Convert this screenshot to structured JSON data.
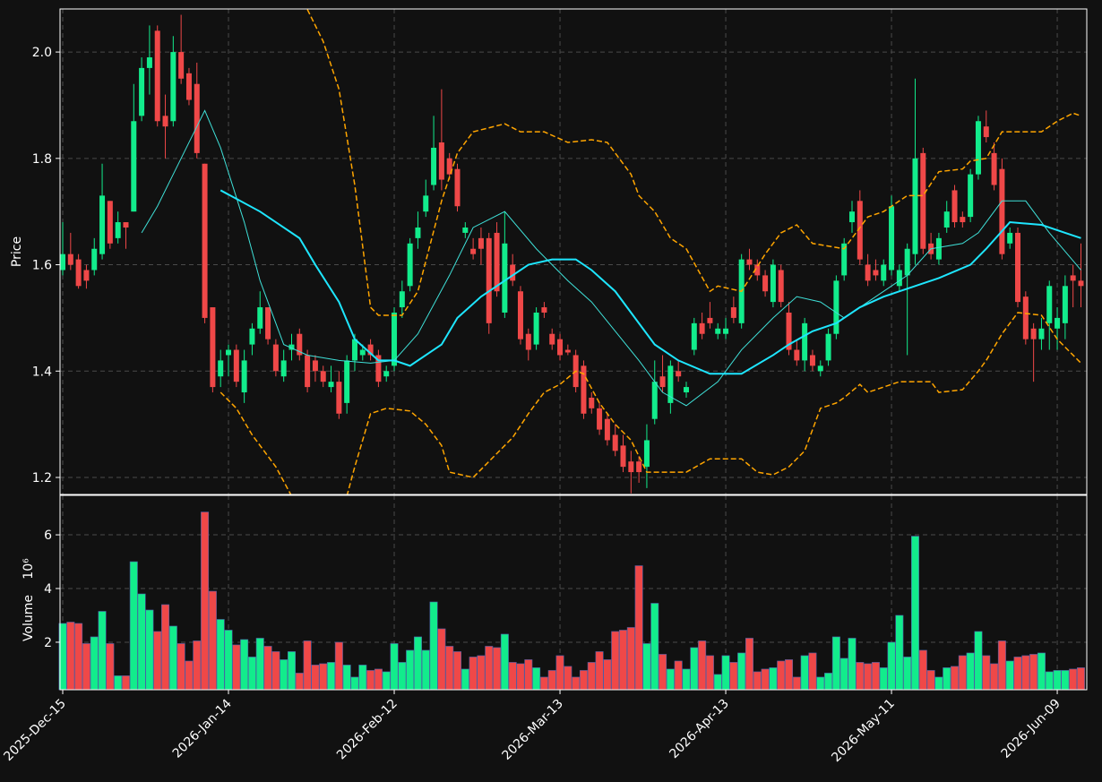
{
  "chart_data": {
    "type": "candlestick",
    "ylabel": "Price",
    "volume_ylabel": "Volume",
    "volume_exponent": "10⁶",
    "up_color": "#12ec8c",
    "down_color": "#ef4848",
    "grid": true,
    "ylim": [
      1.168,
      2.081
    ],
    "yticks": [
      1.2,
      1.4,
      1.6,
      1.8,
      {
        "value": 2,
        "label": "2.0"
      }
    ],
    "volume_ylim": [
      0.23,
      7.47
    ],
    "volume_yticks": [
      2,
      4,
      6
    ],
    "categories": [
      "2025-Dec-15",
      null,
      null,
      null,
      null,
      null,
      null,
      null,
      null,
      null,
      null,
      null,
      null,
      null,
      null,
      null,
      null,
      null,
      null,
      null,
      null,
      "2026-Jan-14",
      null,
      null,
      null,
      null,
      null,
      null,
      null,
      null,
      null,
      null,
      null,
      null,
      null,
      null,
      null,
      null,
      null,
      null,
      null,
      null,
      "2026-Feb-12",
      null,
      null,
      null,
      null,
      null,
      null,
      null,
      null,
      null,
      null,
      null,
      null,
      null,
      null,
      null,
      null,
      null,
      null,
      null,
      null,
      "2026-Mar-13",
      null,
      null,
      null,
      null,
      null,
      null,
      null,
      null,
      null,
      null,
      null,
      null,
      null,
      null,
      null,
      null,
      null,
      null,
      null,
      null,
      "2026-Apr-13",
      null,
      null,
      null,
      null,
      null,
      null,
      null,
      null,
      null,
      null,
      null,
      null,
      null,
      null,
      null,
      null,
      null,
      null,
      null,
      null,
      "2026-May-11",
      null,
      null,
      null,
      null,
      null,
      null,
      null,
      null,
      null,
      null,
      null,
      null,
      null,
      null,
      null,
      null,
      null,
      null,
      null,
      null,
      "2026-Jun-09",
      null,
      null,
      null
    ],
    "open": [
      1.59,
      1.62,
      1.61,
      1.59,
      1.59,
      1.62,
      1.72,
      1.65,
      1.68,
      1.7,
      1.88,
      1.97,
      2.04,
      1.88,
      1.87,
      2.0,
      1.96,
      1.94,
      1.79,
      1.52,
      1.39,
      1.43,
      1.44,
      1.36,
      1.45,
      1.48,
      1.52,
      1.45,
      1.39,
      1.44,
      1.47,
      1.43,
      1.42,
      1.4,
      1.37,
      1.38,
      1.34,
      1.42,
      1.43,
      1.45,
      1.43,
      1.39,
      1.41,
      1.52,
      1.56,
      1.65,
      1.7,
      1.75,
      1.83,
      1.8,
      1.78,
      1.66,
      1.63,
      1.65,
      1.65,
      1.66,
      1.51,
      1.6,
      1.55,
      1.47,
      1.45,
      1.52,
      1.47,
      1.46,
      1.44,
      1.43,
      1.41,
      1.35,
      1.33,
      1.31,
      1.28,
      1.26,
      1.23,
      1.23,
      1.22,
      1.31,
      1.39,
      1.34,
      1.4,
      1.36,
      1.44,
      1.49,
      1.5,
      1.47,
      1.47,
      1.52,
      1.49,
      1.61,
      1.6,
      1.58,
      1.53,
      1.59,
      1.51,
      1.44,
      1.42,
      1.43,
      1.4,
      1.42,
      1.47,
      1.58,
      1.68,
      1.72,
      1.6,
      1.59,
      1.57,
      1.59,
      1.56,
      1.58,
      1.62,
      1.81,
      1.64,
      1.61,
      1.67,
      1.74,
      1.69,
      1.69,
      1.77,
      1.86,
      1.81,
      1.78,
      1.64,
      1.66,
      1.54,
      1.48,
      1.46,
      1.49,
      1.48,
      1.49,
      1.58,
      1.57
    ],
    "high": [
      1.68,
      1.66,
      1.62,
      1.6,
      1.65,
      1.79,
      1.72,
      1.7,
      1.68,
      1.94,
      1.99,
      2.05,
      2.05,
      1.92,
      2.03,
      2.07,
      1.97,
      1.98,
      1.79,
      1.52,
      1.44,
      1.45,
      1.45,
      1.44,
      1.49,
      1.55,
      1.52,
      1.46,
      1.44,
      1.47,
      1.48,
      1.44,
      1.43,
      1.41,
      1.41,
      1.4,
      1.43,
      1.47,
      1.45,
      1.46,
      1.44,
      1.41,
      1.52,
      1.57,
      1.65,
      1.7,
      1.76,
      1.88,
      1.93,
      1.81,
      1.79,
      1.68,
      1.65,
      1.67,
      1.66,
      1.68,
      1.7,
      1.62,
      1.56,
      1.48,
      1.52,
      1.53,
      1.48,
      1.47,
      1.45,
      1.44,
      1.42,
      1.36,
      1.34,
      1.32,
      1.3,
      1.28,
      1.25,
      1.24,
      1.3,
      1.42,
      1.43,
      1.42,
      1.42,
      1.38,
      1.5,
      1.51,
      1.53,
      1.49,
      1.5,
      1.54,
      1.62,
      1.63,
      1.61,
      1.59,
      1.61,
      1.6,
      1.53,
      1.46,
      1.5,
      1.44,
      1.42,
      1.48,
      1.58,
      1.65,
      1.72,
      1.74,
      1.62,
      1.61,
      1.61,
      1.73,
      1.6,
      1.64,
      1.95,
      1.82,
      1.66,
      1.66,
      1.72,
      1.75,
      1.7,
      1.78,
      1.88,
      1.89,
      1.83,
      1.8,
      1.67,
      1.67,
      1.55,
      1.49,
      1.5,
      1.57,
      1.52,
      1.58,
      1.6,
      1.64
    ],
    "low": [
      1.58,
      1.59,
      1.555,
      1.555,
      1.58,
      1.61,
      1.63,
      1.64,
      1.63,
      1.7,
      1.87,
      1.92,
      1.86,
      1.8,
      1.86,
      1.94,
      1.9,
      1.8,
      1.49,
      1.36,
      1.37,
      1.39,
      1.37,
      1.34,
      1.43,
      1.47,
      1.45,
      1.39,
      1.38,
      1.42,
      1.42,
      1.36,
      1.38,
      1.37,
      1.36,
      1.31,
      1.32,
      1.4,
      1.42,
      1.42,
      1.37,
      1.38,
      1.4,
      1.5,
      1.55,
      1.63,
      1.69,
      1.74,
      1.74,
      1.76,
      1.7,
      1.65,
      1.61,
      1.6,
      1.47,
      1.54,
      1.5,
      1.56,
      1.45,
      1.42,
      1.44,
      1.5,
      1.44,
      1.42,
      1.43,
      1.36,
      1.31,
      1.32,
      1.28,
      1.26,
      1.24,
      1.21,
      1.17,
      1.19,
      1.18,
      1.3,
      1.36,
      1.32,
      1.38,
      1.35,
      1.43,
      1.46,
      1.48,
      1.46,
      1.46,
      1.49,
      1.48,
      1.59,
      1.57,
      1.54,
      1.52,
      1.52,
      1.43,
      1.41,
      1.4,
      1.4,
      1.39,
      1.41,
      1.46,
      1.57,
      1.66,
      1.6,
      1.56,
      1.57,
      1.56,
      1.58,
      1.55,
      1.43,
      1.6,
      1.62,
      1.61,
      1.6,
      1.66,
      1.67,
      1.67,
      1.68,
      1.76,
      1.83,
      1.74,
      1.61,
      1.63,
      1.52,
      1.45,
      1.38,
      1.44,
      1.44,
      1.44,
      1.46,
      1.52,
      1.52
    ],
    "close": [
      1.62,
      1.6,
      1.56,
      1.57,
      1.63,
      1.73,
      1.64,
      1.68,
      1.67,
      1.87,
      1.97,
      1.99,
      1.87,
      1.86,
      2.0,
      1.95,
      1.91,
      1.81,
      1.5,
      1.37,
      1.42,
      1.44,
      1.38,
      1.42,
      1.48,
      1.52,
      1.46,
      1.4,
      1.42,
      1.45,
      1.43,
      1.37,
      1.4,
      1.38,
      1.38,
      1.32,
      1.42,
      1.46,
      1.44,
      1.43,
      1.38,
      1.4,
      1.51,
      1.55,
      1.64,
      1.67,
      1.73,
      1.82,
      1.76,
      1.77,
      1.71,
      1.67,
      1.62,
      1.63,
      1.49,
      1.55,
      1.64,
      1.57,
      1.46,
      1.44,
      1.51,
      1.51,
      1.45,
      1.43,
      1.435,
      1.37,
      1.32,
      1.33,
      1.29,
      1.27,
      1.25,
      1.22,
      1.21,
      1.21,
      1.27,
      1.38,
      1.37,
      1.41,
      1.39,
      1.37,
      1.49,
      1.47,
      1.49,
      1.48,
      1.48,
      1.5,
      1.61,
      1.6,
      1.58,
      1.55,
      1.6,
      1.53,
      1.44,
      1.42,
      1.49,
      1.41,
      1.41,
      1.47,
      1.57,
      1.64,
      1.7,
      1.61,
      1.57,
      1.58,
      1.6,
      1.71,
      1.59,
      1.63,
      1.8,
      1.63,
      1.62,
      1.65,
      1.7,
      1.68,
      1.68,
      1.77,
      1.87,
      1.84,
      1.75,
      1.62,
      1.66,
      1.53,
      1.46,
      1.46,
      1.48,
      1.56,
      1.5,
      1.56,
      1.57,
      1.56
    ],
    "volume": [
      2.7,
      2.75,
      2.7,
      1.95,
      2.2,
      3.15,
      1.95,
      0.75,
      0.75,
      5.0,
      3.8,
      3.2,
      2.4,
      3.4,
      2.6,
      1.95,
      1.3,
      2.05,
      6.85,
      3.9,
      2.85,
      2.45,
      1.9,
      2.1,
      1.45,
      2.15,
      1.85,
      1.65,
      1.35,
      1.65,
      0.85,
      2.05,
      1.15,
      1.2,
      1.25,
      2.0,
      1.15,
      0.7,
      1.15,
      0.95,
      1.0,
      0.9,
      1.95,
      1.25,
      1.7,
      2.2,
      1.7,
      3.5,
      2.5,
      1.85,
      1.65,
      1.0,
      1.45,
      1.5,
      1.85,
      1.8,
      2.3,
      1.25,
      1.2,
      1.35,
      1.05,
      0.7,
      0.95,
      1.5,
      1.1,
      0.7,
      0.95,
      1.25,
      1.65,
      1.35,
      2.4,
      2.45,
      2.55,
      4.85,
      1.95,
      3.45,
      1.55,
      1.0,
      1.3,
      1.0,
      1.8,
      2.05,
      1.5,
      0.8,
      1.5,
      1.25,
      1.6,
      2.15,
      0.9,
      1.0,
      1.05,
      1.3,
      1.35,
      0.7,
      1.5,
      1.6,
      0.7,
      0.85,
      2.2,
      1.4,
      2.15,
      1.25,
      1.2,
      1.25,
      1.05,
      2.0,
      3.0,
      1.45,
      5.95,
      1.7,
      0.95,
      0.7,
      1.05,
      1.1,
      1.5,
      1.6,
      2.4,
      1.5,
      1.2,
      2.05,
      1.3,
      1.45,
      1.5,
      1.55,
      1.6,
      0.9,
      0.95,
      0.95,
      1.0,
      1.05
    ],
    "lines": [
      {
        "color": "#3fe0d8",
        "width": 1,
        "dash": false,
        "x": [
          10,
          12,
          15,
          17,
          18,
          20,
          23,
          25,
          28,
          31,
          35,
          39,
          42,
          45,
          49,
          52,
          56,
          60,
          64,
          67,
          73,
          76,
          79,
          83,
          86,
          90,
          93,
          96,
          99,
          103,
          107,
          110,
          114,
          116,
          119,
          122,
          125,
          129
        ],
        "values": [
          1.66,
          1.71,
          1.8,
          1.86,
          1.89,
          1.82,
          1.68,
          1.57,
          1.45,
          1.43,
          1.42,
          1.415,
          1.42,
          1.47,
          1.58,
          1.67,
          1.7,
          1.63,
          1.57,
          1.53,
          1.42,
          1.36,
          1.335,
          1.38,
          1.44,
          1.5,
          1.54,
          1.53,
          1.5,
          1.54,
          1.58,
          1.63,
          1.64,
          1.66,
          1.72,
          1.72,
          1.66,
          1.59
        ]
      },
      {
        "color": "#1ee6ff",
        "width": 2,
        "dash": false,
        "x": [
          20,
          25,
          27,
          30,
          32,
          35,
          37,
          40,
          42,
          44,
          48,
          50,
          53,
          56,
          59,
          62,
          65,
          67,
          70,
          73,
          75,
          78,
          82,
          86,
          90,
          92,
          95,
          98,
          101,
          104,
          108,
          111,
          115,
          117,
          120,
          124,
          127,
          129
        ],
        "values": [
          1.74,
          1.7,
          1.68,
          1.65,
          1.6,
          1.53,
          1.46,
          1.42,
          1.42,
          1.41,
          1.45,
          1.5,
          1.54,
          1.57,
          1.6,
          1.61,
          1.61,
          1.59,
          1.55,
          1.49,
          1.45,
          1.42,
          1.395,
          1.395,
          1.43,
          1.45,
          1.475,
          1.49,
          1.52,
          1.54,
          1.56,
          1.575,
          1.6,
          1.63,
          1.68,
          1.675,
          1.66,
          1.65
        ]
      },
      {
        "color": "#ffa500",
        "width": 1.5,
        "dash": true,
        "x": [
          31,
          33,
          35,
          37,
          39,
          40,
          43,
          45,
          48,
          50,
          52,
          56,
          58,
          61,
          64,
          67,
          69,
          72,
          73,
          75,
          77,
          79,
          82,
          83,
          86,
          89,
          91,
          93,
          95,
          99,
          102,
          104,
          107,
          109,
          111,
          114,
          115,
          117,
          119,
          124,
          126,
          128,
          129
        ],
        "values": [
          2.08,
          2.02,
          1.93,
          1.75,
          1.52,
          1.505,
          1.505,
          1.55,
          1.72,
          1.81,
          1.85,
          1.865,
          1.85,
          1.85,
          1.83,
          1.835,
          1.83,
          1.77,
          1.73,
          1.7,
          1.65,
          1.63,
          1.55,
          1.56,
          1.55,
          1.62,
          1.66,
          1.675,
          1.64,
          1.63,
          1.69,
          1.7,
          1.73,
          1.73,
          1.775,
          1.78,
          1.795,
          1.8,
          1.85,
          1.85,
          1.87,
          1.885,
          1.88
        ]
      },
      {
        "color": "#ffa500",
        "width": 1.5,
        "dash": true,
        "x": [
          20,
          22,
          24,
          27,
          29,
          32,
          36,
          37,
          39,
          41,
          44,
          46,
          48,
          49,
          52,
          54,
          57,
          59,
          61,
          63,
          65,
          66,
          68,
          70,
          72,
          74,
          76,
          79,
          82,
          84,
          86,
          88,
          90,
          92,
          94,
          96,
          98,
          99,
          101,
          102,
          104,
          106,
          110,
          111,
          114,
          116,
          117,
          119,
          121,
          124,
          126,
          128,
          129
        ],
        "values": [
          1.36,
          1.33,
          1.28,
          1.22,
          1.165,
          null,
          1.165,
          1.22,
          1.32,
          1.33,
          1.325,
          1.3,
          1.26,
          1.21,
          1.2,
          1.23,
          1.275,
          1.32,
          1.36,
          1.375,
          1.4,
          1.395,
          1.34,
          1.3,
          1.27,
          1.21,
          1.21,
          1.21,
          1.235,
          1.235,
          1.235,
          1.21,
          1.205,
          1.22,
          1.25,
          1.33,
          1.34,
          1.35,
          1.375,
          1.36,
          1.37,
          1.38,
          1.38,
          1.36,
          1.365,
          1.4,
          1.42,
          1.47,
          1.51,
          1.505,
          1.46,
          1.43,
          1.415
        ]
      }
    ]
  }
}
